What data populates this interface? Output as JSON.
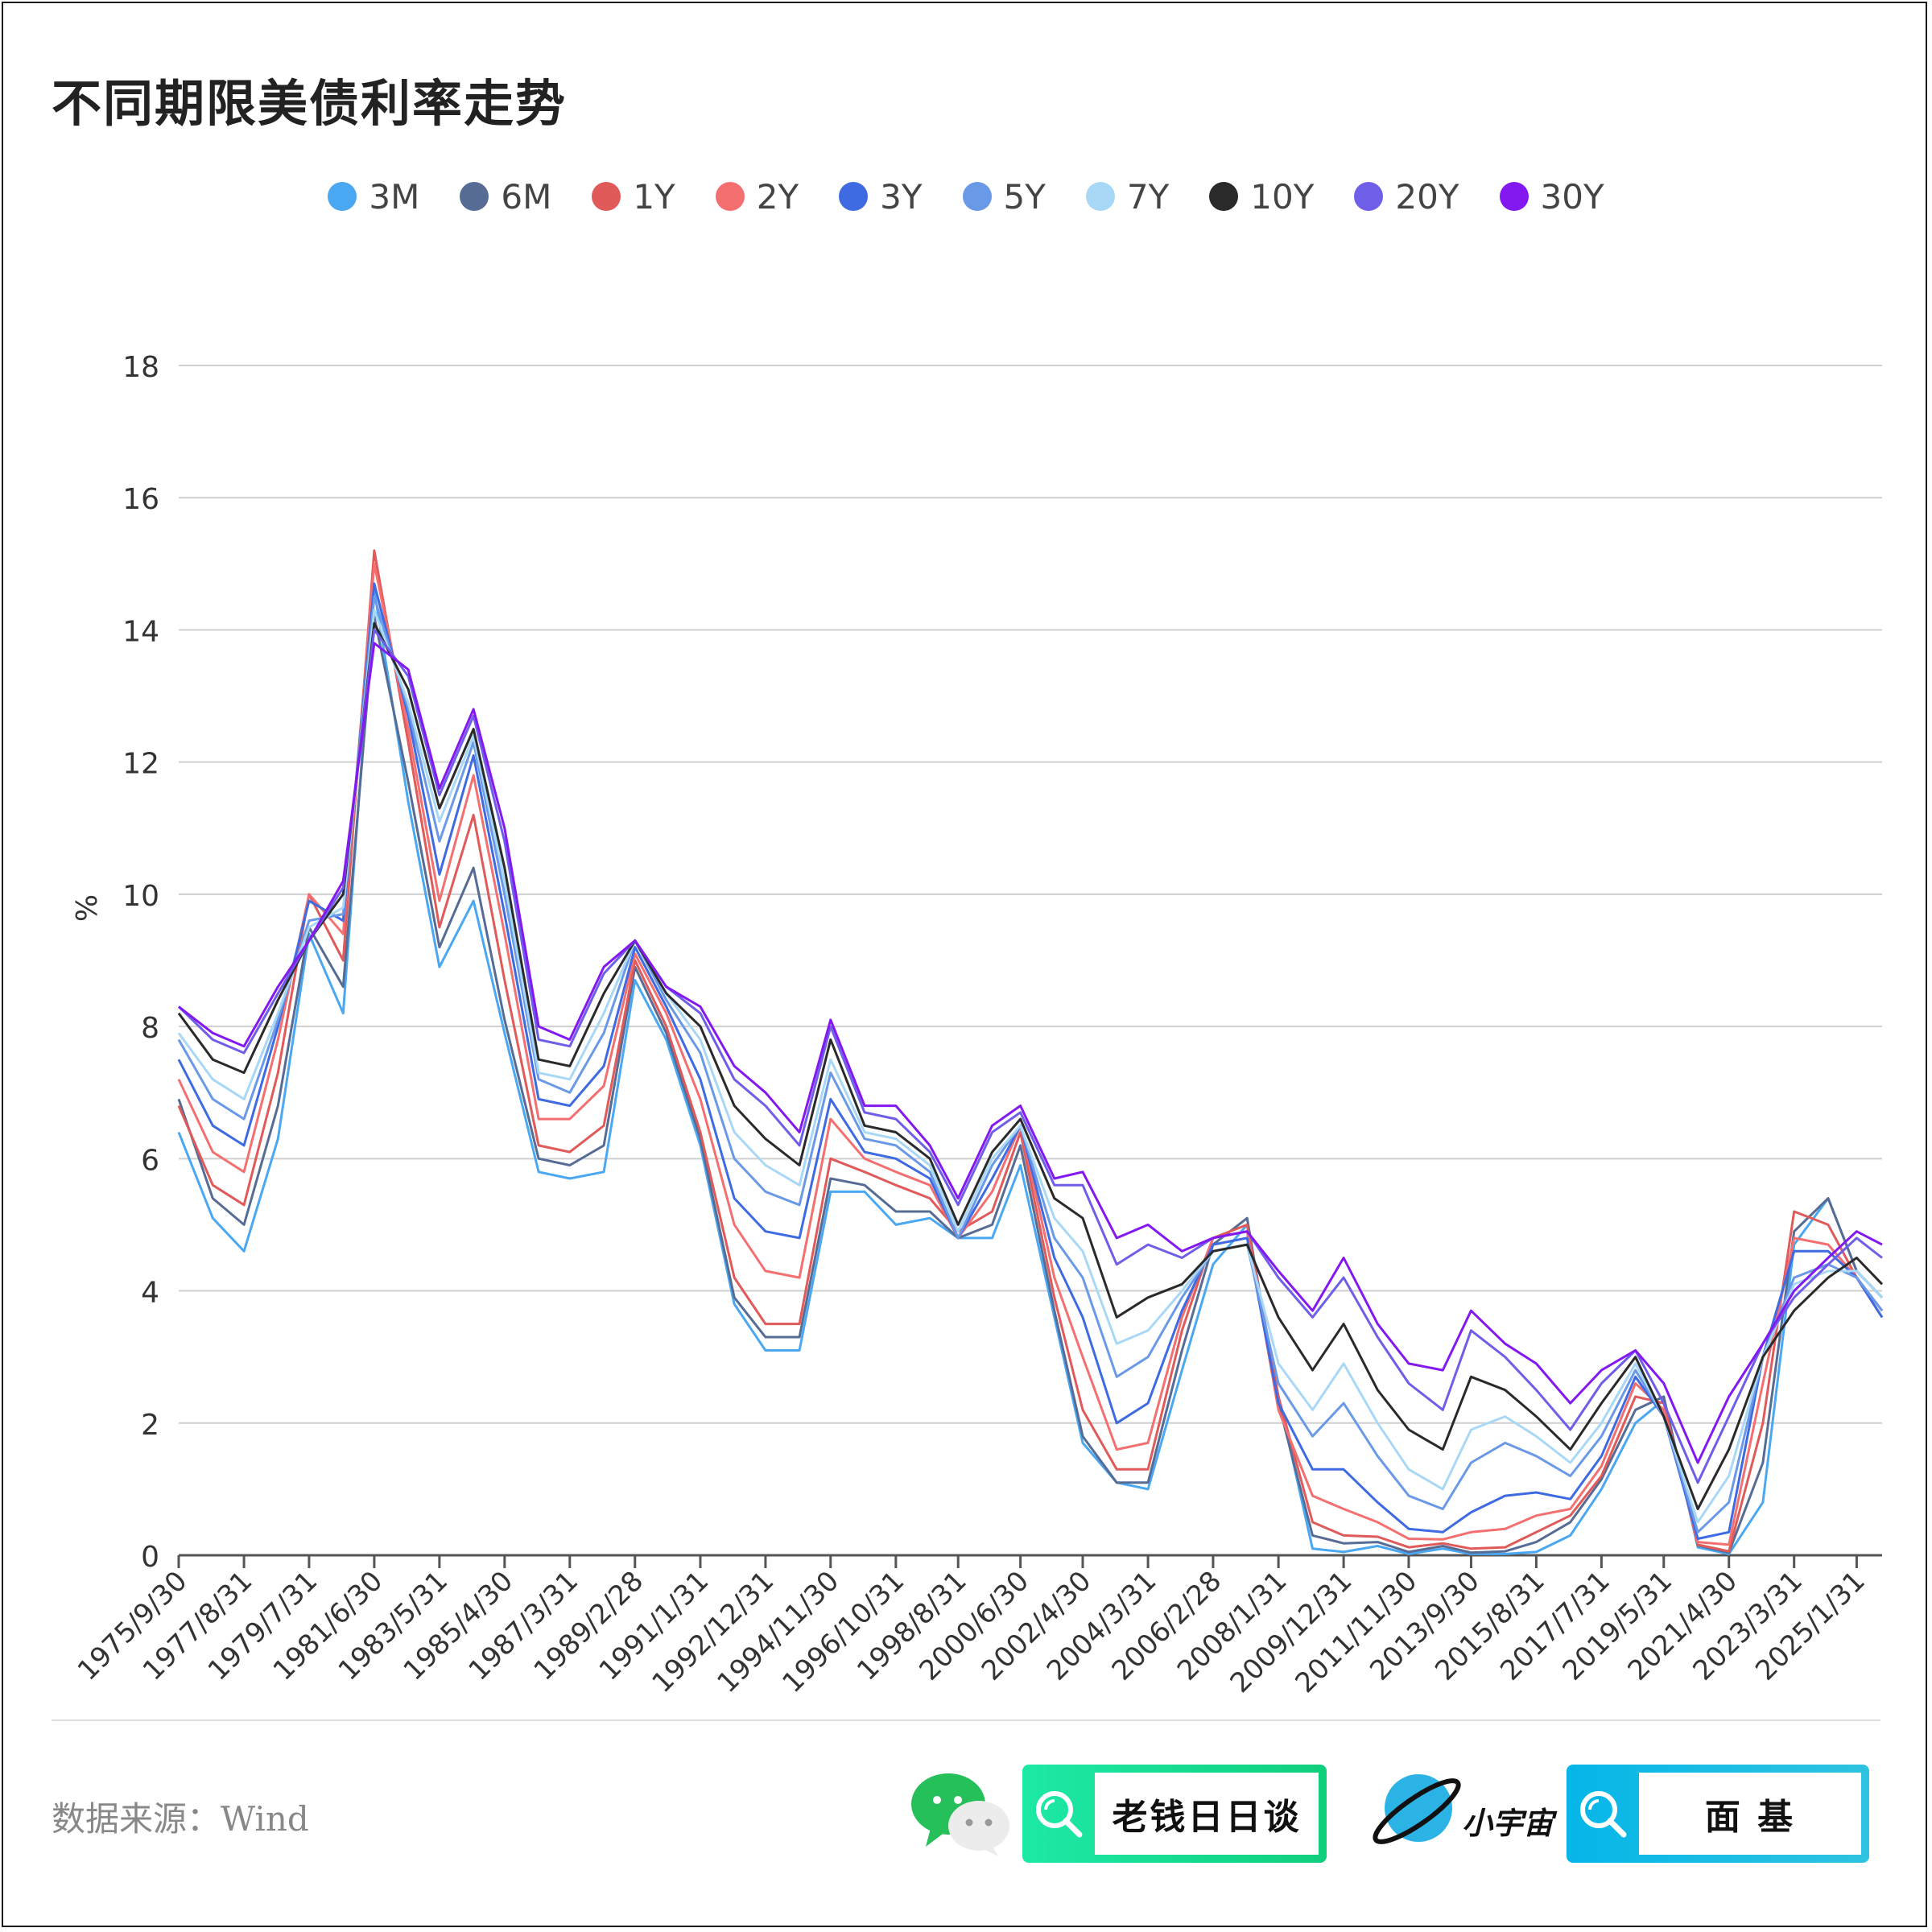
{
  "title": "不同期限美债利率走势",
  "source": "数据来源：Wind",
  "brand1": "老钱日日谈",
  "brand2_name": "小宇宙",
  "brand2_search": "面 基",
  "chart_data": {
    "type": "line",
    "title": "不同期限美债利率走势",
    "ylabel": "%",
    "xlabel": "",
    "ylim": [
      0,
      18
    ],
    "yticks": [
      "0",
      "2",
      "4",
      "6",
      "8",
      "10",
      "12",
      "14",
      "16",
      "18"
    ],
    "x": [
      "1975/9/30",
      "1976/9/30",
      "1977/8/31",
      "1978/8/31",
      "1979/7/31",
      "1980/7/31",
      "1981/6/30",
      "1982/6/30",
      "1983/5/31",
      "1984/5/31",
      "1985/4/30",
      "1986/4/30",
      "1987/3/31",
      "1988/3/31",
      "1989/2/28",
      "1990/1/31",
      "1991/1/31",
      "1992/1/31",
      "1992/12/31",
      "1993/12/31",
      "1994/11/30",
      "1995/11/30",
      "1996/10/31",
      "1997/10/31",
      "1998/8/31",
      "1999/8/31",
      "2000/6/30",
      "2001/6/30",
      "2002/4/30",
      "2003/4/30",
      "2004/3/31",
      "2005/3/31",
      "2006/2/28",
      "2007/2/28",
      "2008/1/31",
      "2009/1/31",
      "2009/12/31",
      "2010/12/31",
      "2011/11/30",
      "2012/11/30",
      "2013/9/30",
      "2014/9/30",
      "2015/8/31",
      "2016/8/31",
      "2017/7/31",
      "2018/7/31",
      "2019/5/31",
      "2020/5/31",
      "2021/4/30",
      "2022/4/30",
      "2023/3/31",
      "2024/3/31",
      "2025/1/31",
      "2025/10/31"
    ],
    "xticks": [
      "1975/9/30",
      "1977/8/31",
      "1979/7/31",
      "1981/6/30",
      "1983/5/31",
      "1985/4/30",
      "1987/3/31",
      "1989/2/28",
      "1991/1/31",
      "1992/12/31",
      "1994/11/30",
      "1996/10/31",
      "1998/8/31",
      "2000/6/30",
      "2002/4/30",
      "2004/3/31",
      "2006/2/28",
      "2008/1/31",
      "2009/12/31",
      "2011/11/30",
      "2013/9/30",
      "2015/8/31",
      "2017/7/31",
      "2019/5/31",
      "2021/4/30",
      "2023/3/31",
      "2025/1/31"
    ],
    "legend_position": "top",
    "grid": true,
    "series": [
      {
        "name": "3M",
        "color": "#4aa8f2",
        "values": [
          6.4,
          5.1,
          4.6,
          6.3,
          9.4,
          8.2,
          14.6,
          11.4,
          8.9,
          9.9,
          7.9,
          5.8,
          5.7,
          5.8,
          8.7,
          7.8,
          6.2,
          3.8,
          3.1,
          3.1,
          5.5,
          5.5,
          5.0,
          5.1,
          4.8,
          4.8,
          5.9,
          3.6,
          1.7,
          1.1,
          1.0,
          2.8,
          4.4,
          5.0,
          2.4,
          0.1,
          0.05,
          0.14,
          0.02,
          0.1,
          0.02,
          0.02,
          0.05,
          0.3,
          1.0,
          2.0,
          2.35,
          0.12,
          0.02,
          0.8,
          4.7,
          5.4,
          4.3,
          3.9
        ]
      },
      {
        "name": "6M",
        "color": "#566c95",
        "values": [
          6.9,
          5.4,
          5.0,
          6.8,
          9.5,
          8.6,
          14.2,
          11.7,
          9.2,
          10.4,
          8.1,
          6.0,
          5.9,
          6.2,
          8.9,
          7.9,
          6.3,
          3.9,
          3.3,
          3.3,
          5.7,
          5.6,
          5.2,
          5.2,
          4.8,
          5.0,
          6.2,
          3.7,
          1.8,
          1.1,
          1.1,
          3.1,
          4.7,
          5.1,
          2.3,
          0.3,
          0.18,
          0.2,
          0.05,
          0.14,
          0.04,
          0.06,
          0.2,
          0.5,
          1.15,
          2.2,
          2.4,
          0.15,
          0.04,
          1.4,
          4.9,
          5.4,
          4.3,
          3.9
        ]
      },
      {
        "name": "1Y",
        "color": "#e05a5a",
        "values": [
          6.8,
          5.6,
          5.3,
          7.3,
          10.0,
          9.0,
          15.2,
          12.3,
          9.5,
          11.2,
          8.7,
          6.2,
          6.1,
          6.5,
          9.0,
          8.0,
          6.4,
          4.2,
          3.5,
          3.5,
          6.0,
          5.8,
          5.6,
          5.4,
          4.9,
          5.2,
          6.4,
          3.9,
          2.2,
          1.3,
          1.3,
          3.4,
          4.8,
          5.0,
          2.4,
          0.5,
          0.3,
          0.28,
          0.12,
          0.18,
          0.1,
          0.12,
          0.35,
          0.6,
          1.2,
          2.4,
          2.3,
          0.16,
          0.06,
          2.0,
          5.2,
          5.0,
          4.2,
          3.7
        ]
      },
      {
        "name": "2Y",
        "color": "#f47070",
        "values": [
          7.2,
          6.1,
          5.8,
          7.8,
          10.0,
          9.4,
          15.0,
          12.5,
          9.9,
          11.8,
          9.4,
          6.6,
          6.6,
          7.1,
          9.1,
          8.2,
          6.9,
          5.0,
          4.3,
          4.2,
          6.6,
          6.0,
          5.8,
          5.6,
          4.8,
          5.5,
          6.5,
          4.2,
          3.0,
          1.6,
          1.7,
          3.6,
          4.8,
          4.9,
          2.2,
          0.9,
          0.7,
          0.5,
          0.25,
          0.24,
          0.35,
          0.4,
          0.6,
          0.7,
          1.35,
          2.6,
          2.2,
          0.2,
          0.16,
          2.6,
          4.8,
          4.7,
          4.2,
          3.6
        ]
      },
      {
        "name": "3Y",
        "color": "#3e6ae2",
        "values": [
          7.5,
          6.5,
          6.2,
          8.0,
          9.9,
          9.6,
          14.7,
          12.7,
          10.3,
          12.1,
          9.7,
          6.9,
          6.8,
          7.4,
          9.2,
          8.3,
          7.2,
          5.4,
          4.9,
          4.8,
          6.9,
          6.1,
          6.0,
          5.7,
          4.8,
          5.7,
          6.5,
          4.5,
          3.6,
          2.0,
          2.3,
          3.7,
          4.7,
          4.8,
          2.3,
          1.3,
          1.3,
          0.8,
          0.4,
          0.35,
          0.65,
          0.9,
          0.95,
          0.85,
          1.5,
          2.7,
          2.1,
          0.25,
          0.35,
          3.0,
          4.6,
          4.6,
          4.2,
          3.6
        ]
      },
      {
        "name": "5Y",
        "color": "#6a99e8",
        "values": [
          7.8,
          6.9,
          6.6,
          8.1,
          9.6,
          9.7,
          14.5,
          12.8,
          10.8,
          12.3,
          10.0,
          7.2,
          7.0,
          7.9,
          9.3,
          8.4,
          7.6,
          6.0,
          5.5,
          5.3,
          7.3,
          6.3,
          6.2,
          5.8,
          4.8,
          5.9,
          6.5,
          4.8,
          4.2,
          2.7,
          3.0,
          3.9,
          4.6,
          4.7,
          2.6,
          1.8,
          2.3,
          1.5,
          0.9,
          0.7,
          1.4,
          1.7,
          1.5,
          1.2,
          1.8,
          2.8,
          2.1,
          0.35,
          0.8,
          3.0,
          4.2,
          4.4,
          4.2,
          3.7
        ]
      },
      {
        "name": "7Y",
        "color": "#a9d8f6",
        "values": [
          7.9,
          7.2,
          6.9,
          8.2,
          9.5,
          9.8,
          14.3,
          12.9,
          11.1,
          12.4,
          10.2,
          7.3,
          7.2,
          8.2,
          9.3,
          8.5,
          7.8,
          6.4,
          5.9,
          5.6,
          7.5,
          6.4,
          6.3,
          5.9,
          4.9,
          6.0,
          6.5,
          5.1,
          4.6,
          3.2,
          3.4,
          4.0,
          4.6,
          4.7,
          2.9,
          2.2,
          2.9,
          2.0,
          1.3,
          1.0,
          1.9,
          2.1,
          1.8,
          1.4,
          2.0,
          2.9,
          2.1,
          0.5,
          1.2,
          3.0,
          4.1,
          4.3,
          4.3,
          3.9
        ]
      },
      {
        "name": "10Y",
        "color": "#2a2a2a",
        "values": [
          8.2,
          7.5,
          7.3,
          8.4,
          9.3,
          10.0,
          14.1,
          13.1,
          11.3,
          12.5,
          10.4,
          7.5,
          7.4,
          8.5,
          9.3,
          8.5,
          8.0,
          6.8,
          6.3,
          5.9,
          7.8,
          6.5,
          6.4,
          6.0,
          5.0,
          6.1,
          6.6,
          5.4,
          5.1,
          3.6,
          3.9,
          4.1,
          4.6,
          4.7,
          3.6,
          2.8,
          3.5,
          2.5,
          1.9,
          1.6,
          2.7,
          2.5,
          2.1,
          1.6,
          2.3,
          3.0,
          2.1,
          0.7,
          1.6,
          3.0,
          3.7,
          4.2,
          4.5,
          4.1
        ]
      },
      {
        "name": "20Y",
        "color": "#6e5ee8",
        "values": [
          8.3,
          7.8,
          7.6,
          8.5,
          9.3,
          10.1,
          14.0,
          13.3,
          11.5,
          12.7,
          10.8,
          7.8,
          7.7,
          8.8,
          9.3,
          8.6,
          8.2,
          7.2,
          6.8,
          6.2,
          8.0,
          6.7,
          6.6,
          6.1,
          5.3,
          6.4,
          6.7,
          5.6,
          5.6,
          4.4,
          4.7,
          4.5,
          4.8,
          4.9,
          4.2,
          3.6,
          4.2,
          3.3,
          2.6,
          2.2,
          3.4,
          3.0,
          2.5,
          1.9,
          2.6,
          3.1,
          2.3,
          1.1,
          2.1,
          3.2,
          3.9,
          4.4,
          4.8,
          4.5
        ]
      },
      {
        "name": "30Y",
        "color": "#8418f0",
        "values": [
          8.3,
          7.9,
          7.7,
          8.6,
          9.3,
          10.2,
          13.8,
          13.4,
          11.6,
          12.8,
          11.0,
          8.0,
          7.8,
          8.9,
          9.3,
          8.6,
          8.3,
          7.4,
          7.0,
          6.4,
          8.1,
          6.8,
          6.8,
          6.2,
          5.4,
          6.5,
          6.8,
          5.7,
          5.8,
          4.8,
          5.0,
          4.6,
          4.8,
          4.9,
          4.3,
          3.7,
          4.5,
          3.5,
          2.9,
          2.8,
          3.7,
          3.2,
          2.9,
          2.3,
          2.8,
          3.1,
          2.6,
          1.4,
          2.4,
          3.2,
          4.0,
          4.5,
          4.9,
          4.7
        ]
      }
    ]
  }
}
